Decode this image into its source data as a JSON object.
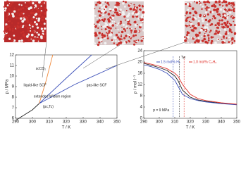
{
  "chart_data": [
    {
      "type": "line",
      "xlabel": "T / K",
      "ylabel": "p / MPa",
      "xlim": [
        290,
        350
      ],
      "xticks": [
        290,
        300,
        310,
        320,
        330,
        340,
        350
      ],
      "ylim": [
        6,
        12
      ],
      "yticks": [
        6,
        7,
        8,
        9,
        10,
        11,
        12
      ],
      "series": [
        {
          "color": "#222222",
          "x": [
            290,
            295,
            300,
            304
          ],
          "values": [
            5.8,
            6.3,
            6.8,
            7.4
          ]
        },
        {
          "color": "#3b4fb8",
          "x": [
            304,
            320,
            335
          ],
          "values": [
            7.4,
            9.8,
            12
          ]
        },
        {
          "color": "#3b4fb8",
          "x": [
            304,
            325,
            350
          ],
          "values": [
            7.4,
            9.2,
            11.0
          ]
        },
        {
          "color": "#f08a3c",
          "x": [
            304,
            308,
            312
          ],
          "values": [
            7.4,
            9.5,
            12
          ]
        }
      ],
      "annotations": [
        "scCO₂",
        "liquid-like SCF",
        "extended Widom region",
        "gas-like SCF",
        "(pc,Tc)"
      ]
    },
    {
      "type": "line",
      "xlabel": "T / K",
      "ylabel": "ρ / mol l⁻¹",
      "xlim": [
        290,
        350
      ],
      "xticks": [
        290,
        300,
        310,
        320,
        330,
        340,
        350
      ],
      "ylim": [
        0,
        24
      ],
      "yticks": [
        0,
        4,
        8,
        12,
        16,
        20,
        24
      ],
      "series": [
        {
          "color": "#222222",
          "x": [
            290,
            295,
            300,
            305,
            310,
            312,
            315,
            320,
            325,
            330,
            340,
            350
          ],
          "values": [
            19.5,
            18.8,
            18,
            17,
            15,
            13.5,
            10,
            7.5,
            6.5,
            6,
            5.3,
            4.9
          ]
        },
        {
          "name": "1.5 mol% H₂",
          "color": "#3b4fb8",
          "x": [
            290,
            295,
            300,
            305,
            310,
            312,
            315,
            320,
            325,
            330,
            340,
            350
          ],
          "values": [
            19,
            18.3,
            17.4,
            16,
            13.5,
            11.5,
            8.5,
            7,
            6.3,
            5.8,
            5.2,
            4.8
          ]
        },
        {
          "name": "1.0 mol% C₂H₆",
          "color": "#e0302a",
          "x": [
            290,
            295,
            300,
            305,
            310,
            312,
            315,
            320,
            325,
            330,
            340,
            350
          ],
          "values": [
            19.8,
            19.2,
            18.5,
            17.6,
            16,
            15,
            12,
            8.5,
            7,
            6.3,
            5.5,
            5.0
          ]
        }
      ],
      "vlines": [
        {
          "x": 309,
          "color": "#3b4fb8"
        },
        {
          "x": 313,
          "color": "#222222"
        },
        {
          "x": 316,
          "color": "#e0302a"
        }
      ],
      "annotations": [
        "p = 9 MPa",
        "Tw"
      ]
    }
  ]
}
